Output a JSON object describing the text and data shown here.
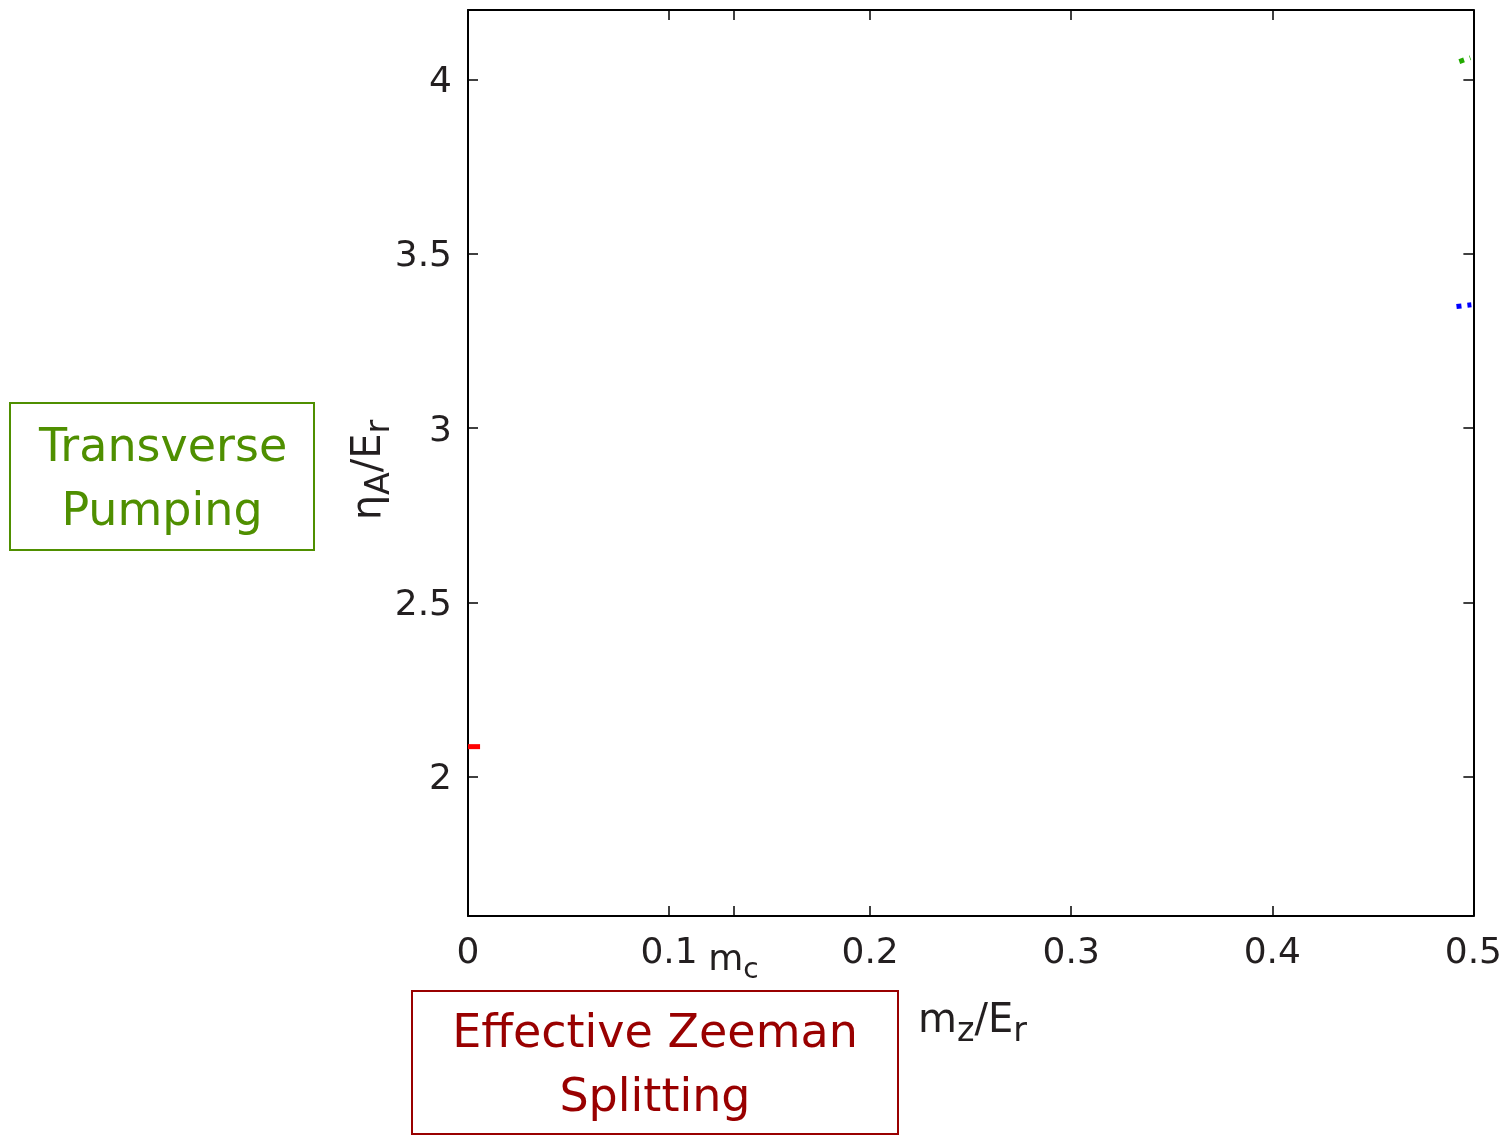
{
  "chart_data": {
    "type": "line",
    "xlabel": "m$_{z}$/E$_{r}$",
    "ylabel": "η$_{A}$/E$_{r}$",
    "annotations": [
      "Transverse Pumping",
      "Effective Zeeman Splitting"
    ],
    "xlim": [
      0,
      0.5
    ],
    "xticks": [
      0,
      0.1,
      {
        "value": 0.132,
        "label": "m$_{c}$"
      },
      0.2,
      0.3,
      0.4,
      0.5
    ],
    "ylim": [
      1.6,
      4.2
    ],
    "yticks": [
      2,
      2.5,
      3,
      3.5,
      4
    ],
    "grid": false,
    "marker": "none",
    "series": [
      {
        "color": "#ff0000",
        "line_style": "solid",
        "x": [
          0,
          0.006
        ],
        "values": [
          2.086,
          2.086
        ]
      },
      {
        "color": "#22aa00",
        "line_style": "dotted",
        "x": [
          0.493,
          0.4985
        ],
        "values": [
          4.052,
          4.063
        ]
      },
      {
        "color": "#0000ff",
        "line_style": "dotted",
        "x": [
          0.4916,
          0.499
        ],
        "values": [
          3.349,
          3.354
        ]
      }
    ]
  }
}
